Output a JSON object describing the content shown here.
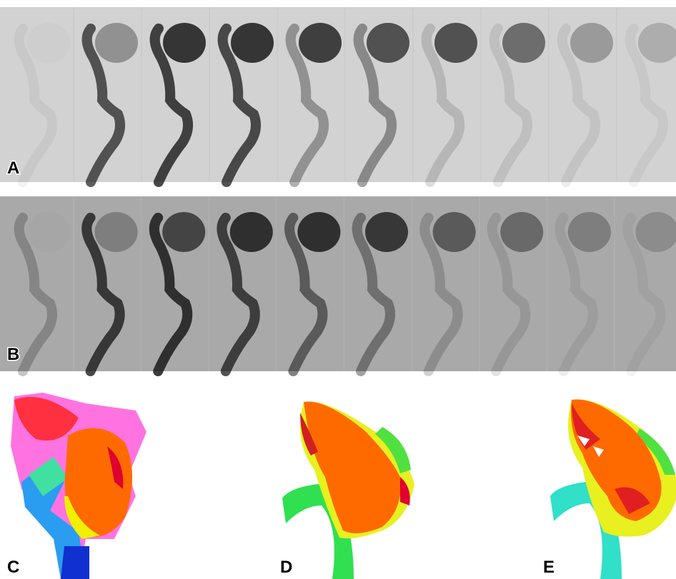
{
  "panels": {
    "a": {
      "label": "A"
    },
    "b": {
      "label": "B"
    },
    "c": {
      "label": "C"
    },
    "d": {
      "label": "D"
    },
    "e": {
      "label": "E"
    }
  }
}
